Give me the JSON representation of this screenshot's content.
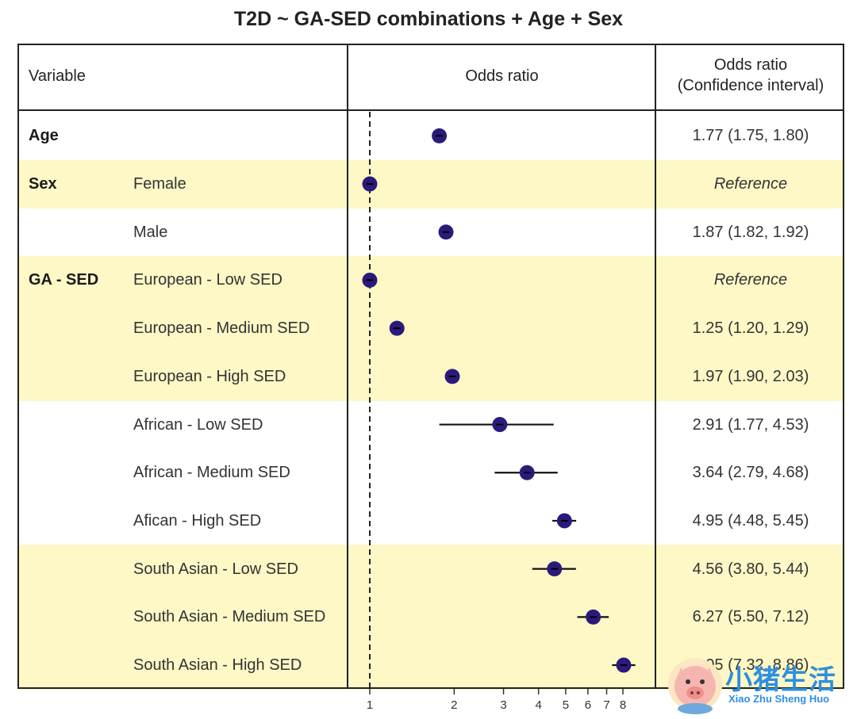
{
  "title": "T2D ~ GA-SED combinations + Age + Sex",
  "header": {
    "variable": "Variable",
    "odds_ratio": "Odds ratio",
    "ci_line1": "Odds ratio",
    "ci_line2": "(Confidence interval)"
  },
  "rows": [
    {
      "group": "Age",
      "level": "",
      "ci_text": "1.77 (1.75, 1.80)",
      "shaded": false
    },
    {
      "group": "Sex",
      "level": "Female",
      "ci_text": "Reference",
      "shaded": true
    },
    {
      "group": "",
      "level": "Male",
      "ci_text": "1.87 (1.82, 1.92)",
      "shaded": false
    },
    {
      "group": "GA - SED",
      "level": "European - Low SED",
      "ci_text": "Reference",
      "shaded": true
    },
    {
      "group": "",
      "level": "European - Medium SED",
      "ci_text": "1.25 (1.20, 1.29)",
      "shaded": true
    },
    {
      "group": "",
      "level": "European - High SED",
      "ci_text": "1.97 (1.90, 2.03)",
      "shaded": true
    },
    {
      "group": "",
      "level": "African - Low SED",
      "ci_text": "2.91 (1.77, 4.53)",
      "shaded": false
    },
    {
      "group": "",
      "level": "African - Medium SED",
      "ci_text": "3.64 (2.79, 4.68)",
      "shaded": false
    },
    {
      "group": "",
      "level": "Afican - High SED",
      "ci_text": "4.95 (4.48, 5.45)",
      "shaded": false
    },
    {
      "group": "",
      "level": "South Asian - Low SED",
      "ci_text": "4.56 (3.80, 5.44)",
      "shaded": true
    },
    {
      "group": "",
      "level": "South Asian - Medium SED",
      "ci_text": "6.27 (5.50, 7.12)",
      "shaded": true
    },
    {
      "group": "",
      "level": "South Asian - High SED",
      "ci_text": "8.05 (7.32, 8.86)",
      "shaded": true
    }
  ],
  "chart_data": {
    "type": "forest",
    "scale": "log",
    "xlim": [
      1,
      8.5
    ],
    "reference_line": 1,
    "x_ticks": [
      1,
      2,
      3,
      4,
      5,
      6,
      7,
      8
    ],
    "categories": [
      "Age",
      "Female",
      "Male",
      "European - Low SED",
      "European - Medium SED",
      "European - High SED",
      "African - Low SED",
      "African - Medium SED",
      "Afican - High SED",
      "South Asian - Low SED",
      "South Asian - Medium SED",
      "South Asian - High SED"
    ],
    "odds_ratio": [
      1.77,
      1.0,
      1.87,
      1.0,
      1.25,
      1.97,
      2.91,
      3.64,
      4.95,
      4.56,
      6.27,
      8.05
    ],
    "ci_low": [
      1.75,
      1.0,
      1.82,
      1.0,
      1.2,
      1.9,
      1.77,
      2.79,
      4.48,
      3.8,
      5.5,
      7.32
    ],
    "ci_high": [
      1.8,
      1.0,
      1.92,
      1.0,
      1.29,
      2.03,
      4.53,
      4.68,
      5.45,
      5.44,
      7.12,
      8.86
    ],
    "point_color": "#2b1a7a"
  },
  "logo": {
    "chinese": "小猪生活",
    "english": "Xiao Zhu Sheng Huo",
    "color": "#2f8fe0"
  }
}
